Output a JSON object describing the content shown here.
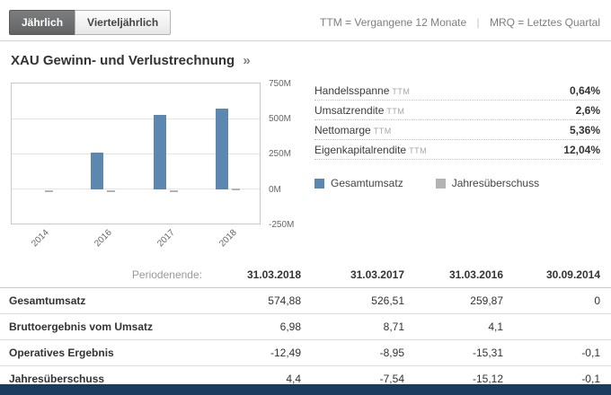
{
  "toolbar": {
    "buttons": [
      {
        "label": "Jährlich",
        "active": true
      },
      {
        "label": "Vierteljährlich",
        "active": false
      }
    ],
    "note": {
      "ttm": "TTM = Vergangene 12 Monate",
      "separator": "|",
      "mrq": "MRQ = Letztes Quartal"
    }
  },
  "section": {
    "title": "XAU Gewinn- und Verlustrechnung",
    "more_arrow": "»"
  },
  "chart_data": {
    "type": "bar",
    "categories": [
      "2014",
      "2016",
      "2017",
      "2018"
    ],
    "series": [
      {
        "name": "Gesamtumsatz",
        "color": "#5b87b0",
        "values": [
          0,
          259.87,
          526.51,
          574.88
        ]
      },
      {
        "name": "Jahresüberschuss",
        "color": "#b3b3b3",
        "values": [
          -0.1,
          -15.12,
          -7.54,
          4.4
        ]
      }
    ],
    "ylim": [
      -250,
      750
    ],
    "yticks": [
      "750M",
      "500M",
      "250M",
      "0M",
      "-250M"
    ],
    "unit": "M",
    "grid": true,
    "legend_position": "right"
  },
  "metrics": {
    "rows": [
      {
        "label": "Handelsspanne",
        "suffix": "TTM",
        "value": "0,64%"
      },
      {
        "label": "Umsatzrendite",
        "suffix": "TTM",
        "value": "2,6%"
      },
      {
        "label": "Nettomarge",
        "suffix": "TTM",
        "value": "5,36%"
      },
      {
        "label": "Eigenkapitalrendite",
        "suffix": "TTM",
        "value": "12,04%"
      }
    ]
  },
  "legend": {
    "items": [
      {
        "label": "Gesamtumsatz",
        "color": "#5b87b0"
      },
      {
        "label": "Jahresüberschuss",
        "color": "#b3b3b3"
      }
    ]
  },
  "table": {
    "header_label": "Periodenende:",
    "columns": [
      "31.03.2018",
      "31.03.2017",
      "31.03.2016",
      "30.09.2014"
    ],
    "rows": [
      {
        "label": "Gesamtumsatz",
        "values": [
          "574,88",
          "526,51",
          "259,87",
          "0"
        ]
      },
      {
        "label": "Bruttoergebnis vom Umsatz",
        "values": [
          "6,98",
          "8,71",
          "4,1",
          ""
        ]
      },
      {
        "label": "Operatives Ergebnis",
        "values": [
          "-12,49",
          "-8,95",
          "-15,31",
          "-0,1"
        ]
      },
      {
        "label": "Jahresüberschuss",
        "values": [
          "4,4",
          "-7,54",
          "-15,12",
          "-0,1"
        ]
      }
    ]
  },
  "colors": {
    "accent_blue": "#5b87b0",
    "gray_bar": "#b3b3b3",
    "footer_bar": "#1c3c5e",
    "active_button_bg": "#6c6d6f"
  }
}
